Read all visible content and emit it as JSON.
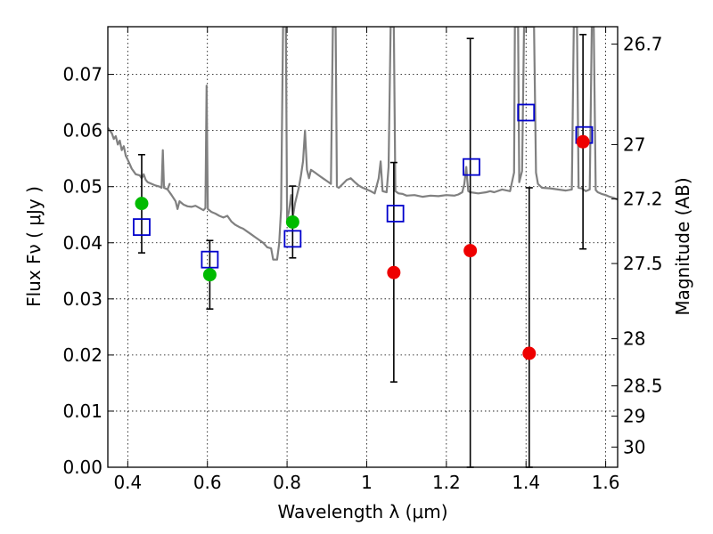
{
  "chart_data": {
    "type": "scatter",
    "xlabel": "Wavelength  λ (μm)",
    "ylabel": "Flux  Fν  ( μJy )",
    "ylabel_right": "Magnitude (AB)",
    "xlim": [
      0.35,
      1.63
    ],
    "ylim": [
      0.0,
      0.0785
    ],
    "grid": true,
    "x_ticks": [
      0.4,
      0.6,
      0.8,
      1.0,
      1.2,
      1.4,
      1.6
    ],
    "x_tick_labels": [
      "0.4",
      "0.6",
      "0.8",
      "1",
      "1.2",
      "1.4",
      "1.6"
    ],
    "y_ticks": [
      0.0,
      0.01,
      0.02,
      0.03,
      0.04,
      0.05,
      0.06,
      0.07
    ],
    "y_tick_labels": [
      "0.00",
      "0.01",
      "0.02",
      "0.03",
      "0.04",
      "0.05",
      "0.06",
      "0.07"
    ],
    "right_ticks": [
      {
        "label": "26.7",
        "flux": 0.0754
      },
      {
        "label": "27",
        "flux": 0.0575
      },
      {
        "label": "27.2",
        "flux": 0.0478
      },
      {
        "label": "27.5",
        "flux": 0.0363
      },
      {
        "label": "28",
        "flux": 0.0229
      },
      {
        "label": "28.5",
        "flux": 0.0145
      },
      {
        "label": "29",
        "flux": 0.0091
      },
      {
        "label": "30",
        "flux": 0.0036
      }
    ],
    "model_spectrum": {
      "color": "#808080",
      "points": [
        [
          0.35,
          0.0605
        ],
        [
          0.36,
          0.0595
        ],
        [
          0.365,
          0.0585
        ],
        [
          0.37,
          0.059
        ],
        [
          0.375,
          0.0575
        ],
        [
          0.38,
          0.0582
        ],
        [
          0.385,
          0.0565
        ],
        [
          0.39,
          0.0572
        ],
        [
          0.395,
          0.0555
        ],
        [
          0.4,
          0.0548
        ],
        [
          0.405,
          0.054
        ],
        [
          0.41,
          0.0532
        ],
        [
          0.42,
          0.0522
        ],
        [
          0.43,
          0.052
        ],
        [
          0.435,
          0.0515
        ],
        [
          0.44,
          0.0522
        ],
        [
          0.445,
          0.0512
        ],
        [
          0.45,
          0.0508
        ],
        [
          0.46,
          0.0505
        ],
        [
          0.47,
          0.0502
        ],
        [
          0.48,
          0.05
        ],
        [
          0.485,
          0.0498
        ],
        [
          0.488,
          0.0565
        ],
        [
          0.491,
          0.0498
        ],
        [
          0.5,
          0.0495
        ],
        [
          0.505,
          0.0505
        ],
        [
          0.5,
          0.0495
        ],
        [
          0.51,
          0.0485
        ],
        [
          0.52,
          0.0474
        ],
        [
          0.525,
          0.046
        ],
        [
          0.53,
          0.0474
        ],
        [
          0.54,
          0.0468
        ],
        [
          0.55,
          0.0465
        ],
        [
          0.56,
          0.0464
        ],
        [
          0.57,
          0.0466
        ],
        [
          0.58,
          0.0462
        ],
        [
          0.59,
          0.0458
        ],
        [
          0.595,
          0.0462
        ],
        [
          0.598,
          0.068
        ],
        [
          0.601,
          0.046
        ],
        [
          0.61,
          0.0455
        ],
        [
          0.62,
          0.0452
        ],
        [
          0.63,
          0.0448
        ],
        [
          0.64,
          0.0445
        ],
        [
          0.65,
          0.0448
        ],
        [
          0.66,
          0.0438
        ],
        [
          0.67,
          0.0432
        ],
        [
          0.68,
          0.0428
        ],
        [
          0.69,
          0.0425
        ],
        [
          0.7,
          0.042
        ],
        [
          0.71,
          0.0415
        ],
        [
          0.72,
          0.041
        ],
        [
          0.73,
          0.0405
        ],
        [
          0.74,
          0.04
        ],
        [
          0.75,
          0.0392
        ],
        [
          0.76,
          0.039
        ],
        [
          0.765,
          0.037
        ],
        [
          0.775,
          0.037
        ],
        [
          0.78,
          0.0398
        ],
        [
          0.785,
          0.046
        ],
        [
          0.79,
          0.0785
        ],
        [
          0.797,
          0.0785
        ],
        [
          0.8,
          0.0442
        ],
        [
          0.805,
          0.0456
        ],
        [
          0.81,
          0.0485
        ],
        [
          0.815,
          0.0448
        ],
        [
          0.82,
          0.047
        ],
        [
          0.83,
          0.05
        ],
        [
          0.835,
          0.052
        ],
        [
          0.84,
          0.0545
        ],
        [
          0.845,
          0.06
        ],
        [
          0.85,
          0.053
        ],
        [
          0.855,
          0.0515
        ],
        [
          0.86,
          0.053
        ],
        [
          0.87,
          0.0525
        ],
        [
          0.88,
          0.052
        ],
        [
          0.89,
          0.0515
        ],
        [
          0.9,
          0.051
        ],
        [
          0.91,
          0.0505
        ],
        [
          0.915,
          0.0785
        ],
        [
          0.922,
          0.0785
        ],
        [
          0.925,
          0.05
        ],
        [
          0.93,
          0.0498
        ],
        [
          0.94,
          0.0505
        ],
        [
          0.95,
          0.0512
        ],
        [
          0.96,
          0.0515
        ],
        [
          0.97,
          0.0508
        ],
        [
          0.98,
          0.0502
        ],
        [
          0.99,
          0.0498
        ],
        [
          1.0,
          0.0495
        ],
        [
          1.01,
          0.0492
        ],
        [
          1.02,
          0.0488
        ],
        [
          1.03,
          0.0515
        ],
        [
          1.035,
          0.0545
        ],
        [
          1.04,
          0.0492
        ],
        [
          1.05,
          0.049
        ],
        [
          1.055,
          0.0535
        ],
        [
          1.06,
          0.0785
        ],
        [
          1.068,
          0.0785
        ],
        [
          1.072,
          0.0492
        ],
        [
          1.08,
          0.0488
        ],
        [
          1.09,
          0.0487
        ],
        [
          1.1,
          0.0484
        ],
        [
          1.12,
          0.0485
        ],
        [
          1.14,
          0.0482
        ],
        [
          1.16,
          0.0484
        ],
        [
          1.18,
          0.0483
        ],
        [
          1.2,
          0.0485
        ],
        [
          1.22,
          0.0484
        ],
        [
          1.23,
          0.0486
        ],
        [
          1.24,
          0.049
        ],
        [
          1.245,
          0.0505
        ],
        [
          1.25,
          0.0535
        ],
        [
          1.252,
          0.0515
        ],
        [
          1.255,
          0.0492
        ],
        [
          1.26,
          0.049
        ],
        [
          1.28,
          0.0488
        ],
        [
          1.3,
          0.049
        ],
        [
          1.31,
          0.0492
        ],
        [
          1.32,
          0.049
        ],
        [
          1.34,
          0.0495
        ],
        [
          1.36,
          0.0492
        ],
        [
          1.37,
          0.0525
        ],
        [
          1.372,
          0.0785
        ],
        [
          1.38,
          0.0785
        ],
        [
          1.383,
          0.0508
        ],
        [
          1.39,
          0.0528
        ],
        [
          1.395,
          0.0785
        ],
        [
          1.42,
          0.0785
        ],
        [
          1.425,
          0.0525
        ],
        [
          1.43,
          0.0505
        ],
        [
          1.44,
          0.0498
        ],
        [
          1.46,
          0.0497
        ],
        [
          1.48,
          0.0495
        ],
        [
          1.5,
          0.0493
        ],
        [
          1.515,
          0.0495
        ],
        [
          1.52,
          0.0785
        ],
        [
          1.528,
          0.0785
        ],
        [
          1.532,
          0.0498
        ],
        [
          1.54,
          0.0497
        ],
        [
          1.55,
          0.0492
        ],
        [
          1.56,
          0.0495
        ],
        [
          1.565,
          0.0785
        ],
        [
          1.57,
          0.0785
        ],
        [
          1.575,
          0.0494
        ],
        [
          1.58,
          0.049
        ],
        [
          1.59,
          0.0487
        ],
        [
          1.6,
          0.0485
        ],
        [
          1.61,
          0.0482
        ],
        [
          1.62,
          0.048
        ],
        [
          1.63,
          0.0477
        ]
      ]
    },
    "model_photometry": {
      "marker": "open-square",
      "color": "#0000cc",
      "points": [
        {
          "x": 0.435,
          "y": 0.0428
        },
        {
          "x": 0.606,
          "y": 0.037
        },
        {
          "x": 0.814,
          "y": 0.0407
        },
        {
          "x": 1.072,
          "y": 0.0452
        },
        {
          "x": 1.263,
          "y": 0.0535
        },
        {
          "x": 1.4,
          "y": 0.0632
        },
        {
          "x": 1.546,
          "y": 0.0592
        }
      ]
    },
    "observed_detections": {
      "marker": "filled-circle",
      "color": "#00bb00",
      "points": [
        {
          "x": 0.435,
          "y": 0.047,
          "yerr_low": 0.0088,
          "yerr_high": 0.0087
        },
        {
          "x": 0.606,
          "y": 0.0343,
          "yerr_low": 0.0061,
          "yerr_high": 0.0061
        },
        {
          "x": 0.814,
          "y": 0.0437,
          "yerr_low": 0.0064,
          "yerr_high": 0.0064
        }
      ]
    },
    "observed_upper": {
      "marker": "filled-circle",
      "color": "#ee0000",
      "points": [
        {
          "x": 1.068,
          "y": 0.0347,
          "yerr_low": 0.0195,
          "yerr_high": 0.0196
        },
        {
          "x": 1.26,
          "y": 0.0386,
          "yerr_low": 0.0386,
          "yerr_high": 0.0378
        },
        {
          "x": 1.408,
          "y": 0.0203,
          "yerr_low": 0.0203,
          "yerr_high": 0.0295
        },
        {
          "x": 1.543,
          "y": 0.058,
          "yerr_low": 0.0191,
          "yerr_high": 0.0191
        }
      ]
    }
  }
}
